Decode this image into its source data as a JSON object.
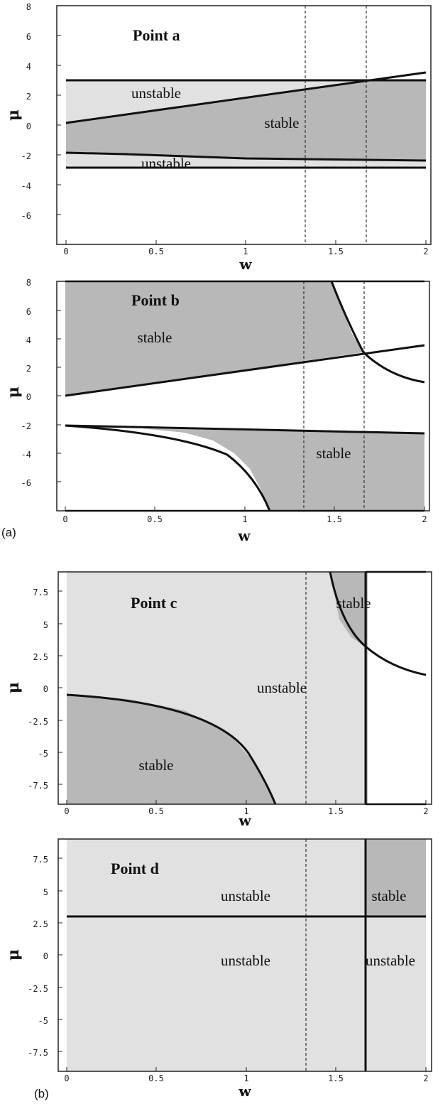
{
  "chart_data": [
    {
      "type": "area",
      "title": "Point a",
      "xlabel": "w",
      "ylabel": "μ",
      "xlim": [
        -0.05,
        2.02
      ],
      "ylim": [
        -8,
        8
      ],
      "xticks": [
        "0",
        "0.5",
        "1",
        "1.5",
        "2"
      ],
      "yticks": [
        "-6",
        "-4",
        "-2",
        "0",
        "2",
        "4",
        "6",
        "8"
      ],
      "vlines_dashed": [
        1.333,
        1.667
      ],
      "curves": [
        {
          "name": "mu = 3",
          "x": [
            0,
            2
          ],
          "y": [
            3,
            3
          ]
        },
        {
          "name": "mu = 1.75 w",
          "x": [
            0,
            2
          ],
          "y": [
            0,
            3.5
          ]
        },
        {
          "name": "lower-boundary",
          "x": [
            0,
            0.5,
            1,
            1.5,
            2
          ],
          "y": [
            -2,
            -2.2,
            -2.35,
            -2.5,
            -2.6
          ]
        },
        {
          "name": "mu = -3",
          "x": [
            0,
            2
          ],
          "y": [
            -3,
            -3
          ]
        }
      ],
      "region_labels": [
        {
          "text": "unstable",
          "x": 0.55,
          "y": 2.1
        },
        {
          "text": "stable",
          "x": 1.2,
          "y": 0.0
        },
        {
          "text": "unstable",
          "x": 0.55,
          "y": -3.0
        }
      ]
    },
    {
      "type": "area",
      "title": "Point b",
      "xlabel": "w",
      "ylabel": "μ",
      "xlim": [
        -0.05,
        2.02
      ],
      "ylim": [
        -8,
        8
      ],
      "xticks": [
        "0",
        "0.5",
        "1",
        "1.5",
        "2"
      ],
      "yticks": [
        "-6",
        "-4",
        "-2",
        "0",
        "2",
        "4",
        "6",
        "8"
      ],
      "vlines_dashed": [
        1.333,
        1.667
      ],
      "curves": [
        {
          "name": "mu = 1.75 w",
          "x": [
            0,
            2
          ],
          "y": [
            0,
            3.5
          ]
        },
        {
          "name": "hyperbola-upper",
          "x": [
            1.46,
            1.667,
            2
          ],
          "y": [
            8,
            3,
            1
          ]
        },
        {
          "name": "lower-boundary",
          "x": [
            0,
            2
          ],
          "y": [
            -2,
            -2.6
          ]
        },
        {
          "name": "hyperbola-lower",
          "x": [
            0,
            0.5,
            1,
            1.15
          ],
          "y": [
            -2,
            -2.8,
            -5.6,
            -8
          ]
        }
      ],
      "region_labels": [
        {
          "text": "stable",
          "x": 0.5,
          "y": 4.0
        },
        {
          "text": "stable",
          "x": 1.5,
          "y": -4.0
        }
      ]
    },
    {
      "type": "area",
      "title": "Point c",
      "xlabel": "w",
      "ylabel": "μ",
      "xlim": [
        -0.03,
        2.02
      ],
      "ylim": [
        -9,
        9
      ],
      "xticks": [
        "0",
        "0.5",
        "1",
        "1.5",
        "2"
      ],
      "yticks": [
        "-7.5",
        "-5",
        "-2.5",
        "0",
        "2.5",
        "5",
        "7.5"
      ],
      "vlines_dashed": [
        1.333
      ],
      "vlines_solid": [
        1.667
      ],
      "curves": [
        {
          "name": "hyperbola-upper",
          "x": [
            1.46,
            1.667,
            2
          ],
          "y": [
            9,
            3,
            1
          ]
        },
        {
          "name": "hyperbola-lower",
          "x": [
            0,
            0.5,
            1,
            1.17
          ],
          "y": [
            -2,
            -2.5,
            -5,
            -9
          ]
        }
      ],
      "region_labels": [
        {
          "text": "stable",
          "x": 1.6,
          "y": 6.5
        },
        {
          "text": "unstable",
          "x": 1.2,
          "y": 0.0
        },
        {
          "text": "stable",
          "x": 0.5,
          "y": -6.5
        }
      ]
    },
    {
      "type": "area",
      "title": "Point d",
      "xlabel": "w",
      "ylabel": "μ",
      "xlim": [
        -0.03,
        2.02
      ],
      "ylim": [
        -9,
        9
      ],
      "xticks": [
        "0",
        "0.5",
        "1",
        "1.5",
        "2"
      ],
      "yticks": [
        "-7.5",
        "-5",
        "-2.5",
        "0",
        "2.5",
        "5",
        "7.5"
      ],
      "vlines_dashed": [
        1.333
      ],
      "vlines_solid": [
        1.667
      ],
      "hlines_solid": [
        3
      ],
      "region_labels": [
        {
          "text": "unstable",
          "x": 1.0,
          "y": 4.5
        },
        {
          "text": "stable",
          "x": 1.83,
          "y": 4.5
        },
        {
          "text": "unstable",
          "x": 1.0,
          "y": 0.0
        },
        {
          "text": "unstable",
          "x": 1.83,
          "y": 0.0
        }
      ]
    }
  ],
  "panel_tags": [
    "(a)",
    "(b)"
  ],
  "colors": {
    "dark_fill": "#b8b8b8",
    "light_fill": "#e1e1e1",
    "line": "#111111",
    "frame": "#222222"
  }
}
